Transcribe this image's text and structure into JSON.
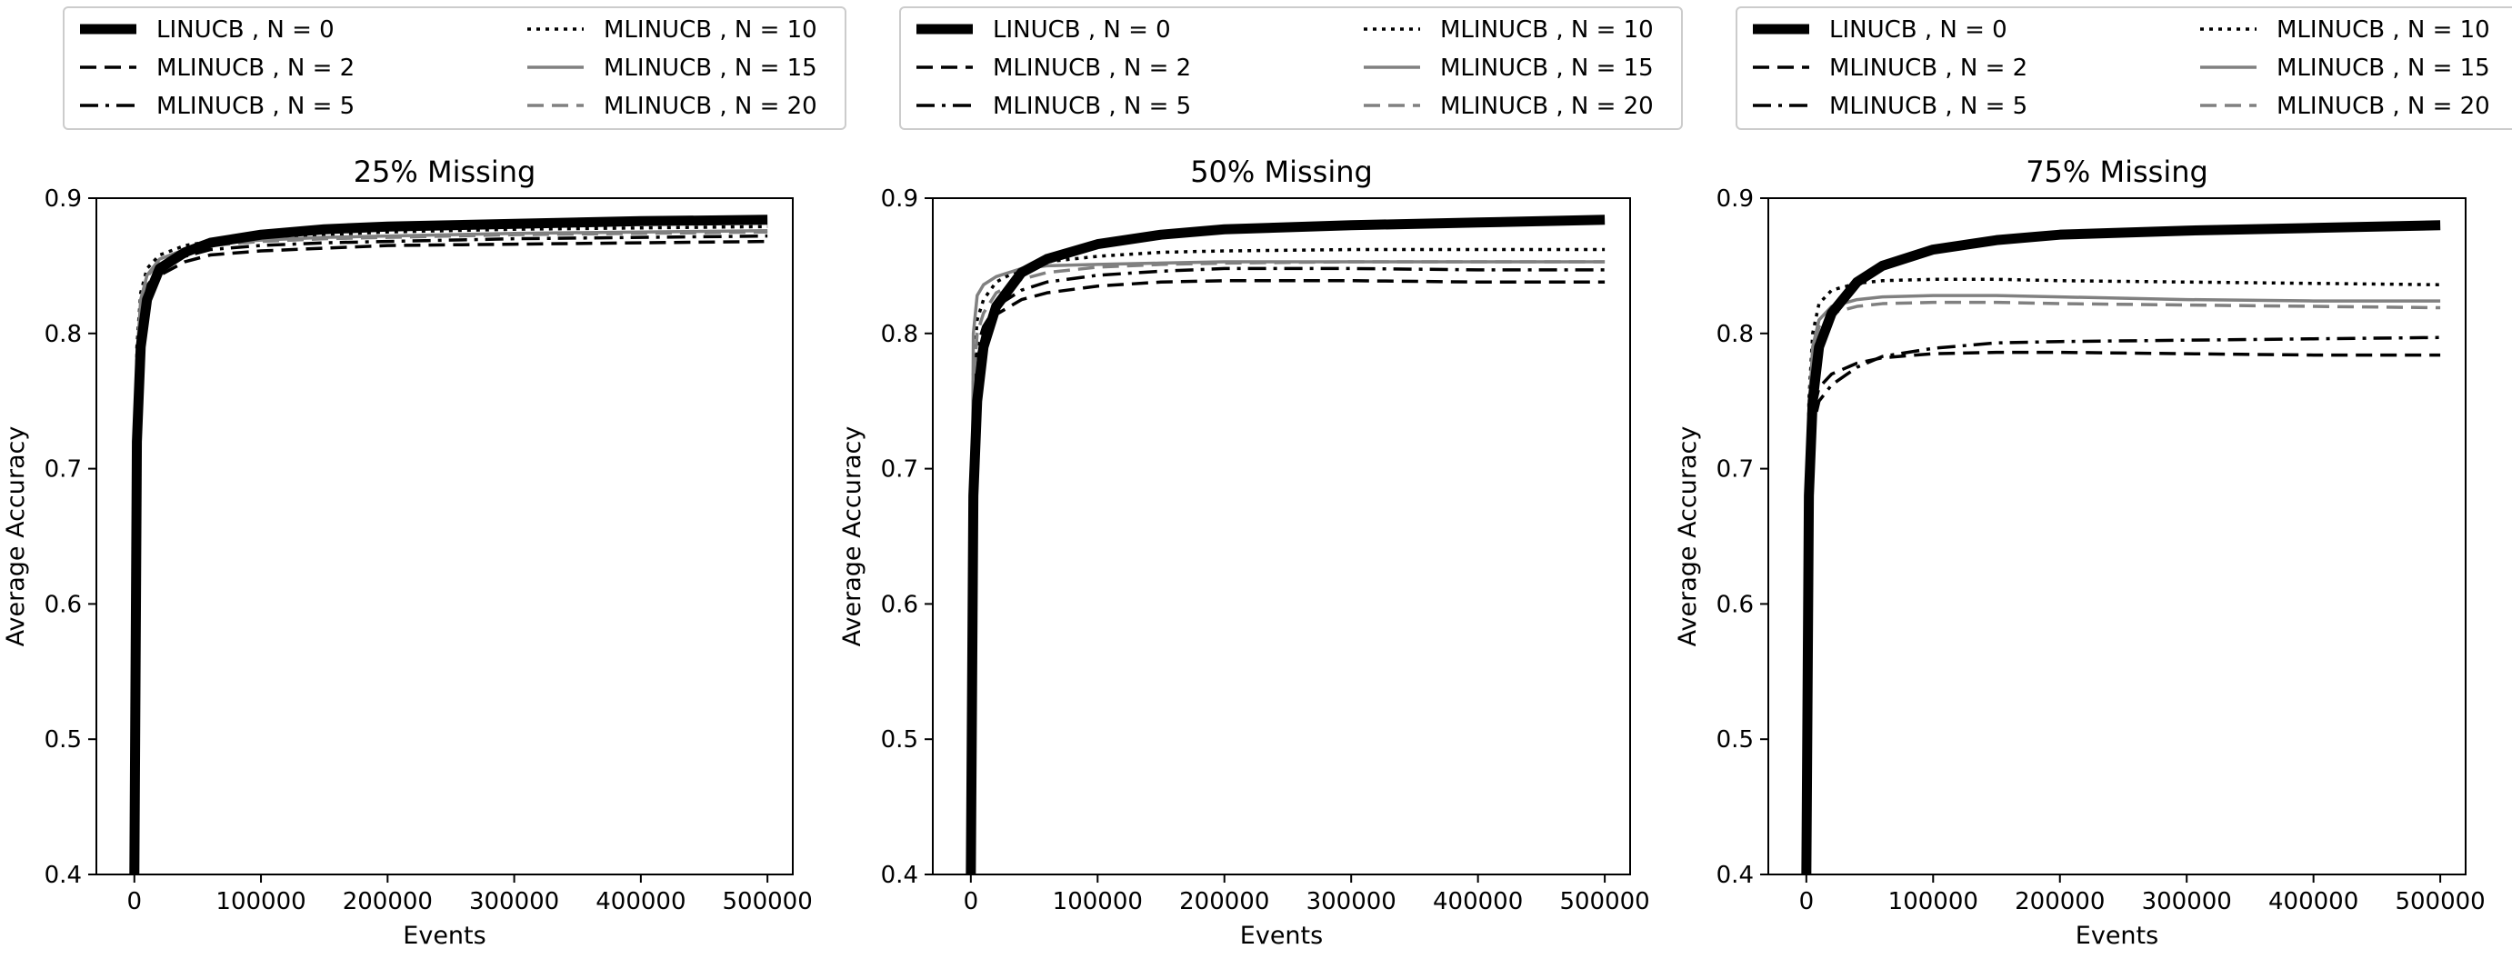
{
  "chart_data": [
    {
      "type": "line",
      "title": "25% Missing",
      "xlabel": "Events",
      "ylabel": "Average Accuracy",
      "xlim": [
        -30000,
        520000
      ],
      "ylim": [
        0.4,
        0.9
      ],
      "xticks": [
        0,
        100000,
        200000,
        300000,
        400000,
        500000
      ],
      "yticks": [
        0.4,
        0.5,
        0.6,
        0.7,
        0.8,
        0.9
      ],
      "grid": false,
      "legend_position": "above-plot",
      "series": [
        {
          "name": "LINUCB , N = 0",
          "x": [
            0,
            2000,
            5000,
            10000,
            20000,
            40000,
            60000,
            100000,
            150000,
            200000,
            300000,
            400000,
            500000
          ],
          "values": [
            0.4,
            0.72,
            0.79,
            0.825,
            0.848,
            0.86,
            0.867,
            0.873,
            0.877,
            0.879,
            0.881,
            0.883,
            0.884
          ]
        },
        {
          "name": "MLINUCB , N = 2",
          "x": [
            0,
            2000,
            5000,
            10000,
            20000,
            40000,
            60000,
            100000,
            150000,
            200000,
            300000,
            400000,
            500000
          ],
          "values": [
            0.45,
            0.76,
            0.81,
            0.83,
            0.843,
            0.853,
            0.858,
            0.861,
            0.863,
            0.865,
            0.866,
            0.867,
            0.868
          ]
        },
        {
          "name": "MLINUCB , N = 5",
          "x": [
            0,
            2000,
            5000,
            10000,
            20000,
            40000,
            60000,
            100000,
            150000,
            200000,
            300000,
            400000,
            500000
          ],
          "values": [
            0.45,
            0.77,
            0.815,
            0.835,
            0.848,
            0.857,
            0.862,
            0.865,
            0.867,
            0.868,
            0.87,
            0.871,
            0.872
          ]
        },
        {
          "name": "MLINUCB , N = 10",
          "x": [
            0,
            2000,
            5000,
            10000,
            20000,
            40000,
            60000,
            100000,
            150000,
            200000,
            300000,
            400000,
            500000
          ],
          "values": [
            0.5,
            0.79,
            0.83,
            0.848,
            0.858,
            0.865,
            0.868,
            0.871,
            0.873,
            0.875,
            0.877,
            0.878,
            0.879
          ]
        },
        {
          "name": "MLINUCB , N = 15",
          "x": [
            0,
            2000,
            5000,
            10000,
            20000,
            40000,
            60000,
            100000,
            150000,
            200000,
            300000,
            400000,
            500000
          ],
          "values": [
            0.5,
            0.78,
            0.825,
            0.843,
            0.855,
            0.862,
            0.866,
            0.869,
            0.871,
            0.872,
            0.874,
            0.875,
            0.876
          ]
        },
        {
          "name": "MLINUCB , N = 20",
          "x": [
            0,
            2000,
            5000,
            10000,
            20000,
            40000,
            60000,
            100000,
            150000,
            200000,
            300000,
            400000,
            500000
          ],
          "values": [
            0.5,
            0.78,
            0.823,
            0.842,
            0.853,
            0.861,
            0.865,
            0.868,
            0.87,
            0.871,
            0.873,
            0.874,
            0.875
          ]
        }
      ]
    },
    {
      "type": "line",
      "title": "50% Missing",
      "xlabel": "Events",
      "ylabel": "Average Accuracy",
      "xlim": [
        -30000,
        520000
      ],
      "ylim": [
        0.4,
        0.9
      ],
      "xticks": [
        0,
        100000,
        200000,
        300000,
        400000,
        500000
      ],
      "yticks": [
        0.4,
        0.5,
        0.6,
        0.7,
        0.8,
        0.9
      ],
      "grid": false,
      "legend_position": "above-plot",
      "series": [
        {
          "name": "LINUCB , N = 0",
          "x": [
            0,
            2000,
            5000,
            10000,
            20000,
            40000,
            60000,
            100000,
            150000,
            200000,
            300000,
            400000,
            500000
          ],
          "values": [
            0.4,
            0.68,
            0.75,
            0.79,
            0.82,
            0.845,
            0.855,
            0.866,
            0.873,
            0.877,
            0.88,
            0.882,
            0.884
          ]
        },
        {
          "name": "MLINUCB , N = 2",
          "x": [
            0,
            2000,
            5000,
            10000,
            20000,
            40000,
            60000,
            100000,
            150000,
            200000,
            300000,
            400000,
            500000
          ],
          "values": [
            0.45,
            0.74,
            0.78,
            0.8,
            0.814,
            0.825,
            0.83,
            0.835,
            0.838,
            0.839,
            0.839,
            0.838,
            0.838
          ]
        },
        {
          "name": "MLINUCB , N = 5",
          "x": [
            0,
            2000,
            5000,
            10000,
            20000,
            40000,
            60000,
            100000,
            150000,
            200000,
            300000,
            400000,
            500000
          ],
          "values": [
            0.45,
            0.75,
            0.79,
            0.805,
            0.82,
            0.832,
            0.838,
            0.843,
            0.846,
            0.848,
            0.848,
            0.847,
            0.847
          ]
        },
        {
          "name": "MLINUCB , N = 10",
          "x": [
            0,
            2000,
            5000,
            10000,
            20000,
            40000,
            60000,
            100000,
            150000,
            200000,
            300000,
            400000,
            500000
          ],
          "values": [
            0.48,
            0.77,
            0.81,
            0.825,
            0.838,
            0.848,
            0.853,
            0.857,
            0.86,
            0.861,
            0.862,
            0.862,
            0.862
          ]
        },
        {
          "name": "MLINUCB , N = 15",
          "x": [
            0,
            2000,
            5000,
            10000,
            20000,
            40000,
            60000,
            100000,
            150000,
            200000,
            300000,
            400000,
            500000
          ],
          "values": [
            0.5,
            0.8,
            0.828,
            0.836,
            0.842,
            0.848,
            0.85,
            0.851,
            0.852,
            0.853,
            0.853,
            0.853,
            0.853
          ]
        },
        {
          "name": "MLINUCB , N = 20",
          "x": [
            0,
            2000,
            5000,
            10000,
            20000,
            40000,
            60000,
            100000,
            150000,
            200000,
            300000,
            400000,
            500000
          ],
          "values": [
            0.48,
            0.76,
            0.8,
            0.815,
            0.83,
            0.84,
            0.845,
            0.849,
            0.851,
            0.852,
            0.853,
            0.853,
            0.853
          ]
        }
      ]
    },
    {
      "type": "line",
      "title": "75% Missing",
      "xlabel": "Events",
      "ylabel": "Average Accuracy",
      "xlim": [
        -30000,
        520000
      ],
      "ylim": [
        0.4,
        0.9
      ],
      "xticks": [
        0,
        100000,
        200000,
        300000,
        400000,
        500000
      ],
      "yticks": [
        0.4,
        0.5,
        0.6,
        0.7,
        0.8,
        0.9
      ],
      "grid": false,
      "legend_position": "above-plot",
      "series": [
        {
          "name": "LINUCB , N = 0",
          "x": [
            0,
            2000,
            5000,
            10000,
            20000,
            40000,
            60000,
            100000,
            150000,
            200000,
            300000,
            400000,
            500000
          ],
          "values": [
            0.4,
            0.68,
            0.75,
            0.79,
            0.815,
            0.838,
            0.85,
            0.862,
            0.869,
            0.873,
            0.876,
            0.878,
            0.88
          ]
        },
        {
          "name": "MLINUCB , N = 2",
          "x": [
            0,
            2000,
            5000,
            10000,
            20000,
            40000,
            60000,
            100000,
            150000,
            200000,
            300000,
            400000,
            500000
          ],
          "values": [
            0.42,
            0.7,
            0.74,
            0.76,
            0.77,
            0.778,
            0.782,
            0.785,
            0.786,
            0.786,
            0.785,
            0.784,
            0.784
          ]
        },
        {
          "name": "MLINUCB , N = 5",
          "x": [
            0,
            2000,
            5000,
            10000,
            20000,
            40000,
            60000,
            100000,
            150000,
            200000,
            300000,
            400000,
            500000
          ],
          "values": [
            0.42,
            0.69,
            0.73,
            0.75,
            0.762,
            0.775,
            0.783,
            0.789,
            0.793,
            0.794,
            0.795,
            0.796,
            0.797
          ]
        },
        {
          "name": "MLINUCB , N = 10",
          "x": [
            0,
            2000,
            5000,
            10000,
            20000,
            40000,
            60000,
            100000,
            150000,
            200000,
            300000,
            400000,
            500000
          ],
          "values": [
            0.45,
            0.75,
            0.8,
            0.822,
            0.832,
            0.837,
            0.839,
            0.84,
            0.84,
            0.839,
            0.838,
            0.837,
            0.836
          ]
        },
        {
          "name": "MLINUCB , N = 15",
          "x": [
            0,
            2000,
            5000,
            10000,
            20000,
            40000,
            60000,
            100000,
            150000,
            200000,
            300000,
            400000,
            500000
          ],
          "values": [
            0.45,
            0.74,
            0.79,
            0.81,
            0.82,
            0.825,
            0.827,
            0.828,
            0.828,
            0.827,
            0.825,
            0.824,
            0.824
          ]
        },
        {
          "name": "MLINUCB , N = 20",
          "x": [
            0,
            2000,
            5000,
            10000,
            20000,
            40000,
            60000,
            100000,
            150000,
            200000,
            300000,
            400000,
            500000
          ],
          "values": [
            0.45,
            0.73,
            0.785,
            0.805,
            0.815,
            0.82,
            0.822,
            0.823,
            0.823,
            0.822,
            0.821,
            0.82,
            0.819
          ]
        }
      ]
    }
  ],
  "series_styles": [
    {
      "color": "#000000",
      "dash": "solid",
      "width": "thick"
    },
    {
      "color": "#000000",
      "dash": "dashed",
      "width": "normal"
    },
    {
      "color": "#000000",
      "dash": "dashdot",
      "width": "normal"
    },
    {
      "color": "#000000",
      "dash": "dotted",
      "width": "normal"
    },
    {
      "color": "#808080",
      "dash": "solid",
      "width": "normal"
    },
    {
      "color": "#808080",
      "dash": "dashed",
      "width": "normal"
    }
  ]
}
